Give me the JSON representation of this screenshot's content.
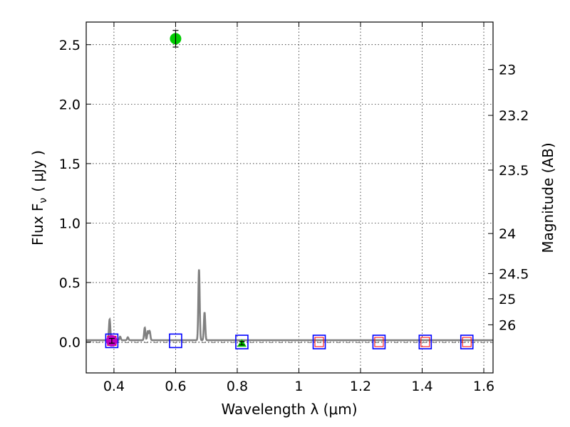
{
  "chart_data": {
    "type": "scatter",
    "title": "",
    "xlabel": "Wavelength  λ (μm)",
    "ylabel": "Flux  F",
    "ylabel_sub": "ν",
    "ylabel_unit": "( μJy )",
    "y2label": "Magnitude (AB)",
    "xlim": [
      0.31,
      1.63
    ],
    "ylim": [
      -0.26,
      2.69
    ],
    "grid": true,
    "x_ticks": [
      0.4,
      0.6,
      0.8,
      1.0,
      1.2,
      1.4,
      1.6
    ],
    "x_tick_labels": [
      "0.4",
      "0.6",
      "0.8",
      "1",
      "1.2",
      "1.4",
      "1.6"
    ],
    "y_ticks": [
      0.0,
      0.5,
      1.0,
      1.5,
      2.0,
      2.5
    ],
    "y_tick_labels": [
      "0.0",
      "0.5",
      "1.0",
      "1.5",
      "2.0",
      "2.5"
    ],
    "mag_ticks": [
      23,
      23.2,
      23.5,
      24,
      24.5,
      25,
      26
    ],
    "mag_tick_labels": [
      "23",
      "23.2",
      "23.5",
      "24",
      "24.5",
      "25",
      "26"
    ],
    "model_spectrum": {
      "name": "model SED",
      "color": "#808080",
      "baseline": 0.015,
      "lines": [
        {
          "x": 0.386,
          "peak": 0.19
        },
        {
          "x": 0.42,
          "peak": 0.045
        },
        {
          "x": 0.445,
          "peak": 0.04
        },
        {
          "x": 0.5,
          "peak": 0.12
        },
        {
          "x": 0.51,
          "peak": 0.09
        },
        {
          "x": 0.516,
          "peak": 0.09
        },
        {
          "x": 0.676,
          "peak": 0.61
        },
        {
          "x": 0.694,
          "peak": 0.25
        }
      ]
    },
    "zero_line": {
      "y": -0.005,
      "style": "dash-dot",
      "color": "#808080"
    },
    "measurements": [
      {
        "name": "green point",
        "x": 0.6,
        "y": 2.55,
        "yerr": 0.07,
        "marker": "circle",
        "color": "#00cc00"
      },
      {
        "name": "magenta point",
        "x": 0.393,
        "y": 0.01,
        "yerr": 0.02,
        "marker": "circle",
        "color": "#bf00bf"
      },
      {
        "name": "green upper limit",
        "x": 0.815,
        "y": -0.01,
        "yerr": 0.015,
        "marker": "triangle",
        "color": "#00cc00"
      }
    ],
    "model_fluxes_blue": {
      "color": "#0000ff",
      "x": [
        0.393,
        0.6,
        0.815,
        1.066,
        1.26,
        1.41,
        1.545
      ],
      "y": [
        0.01,
        0.01,
        0.0,
        0.0,
        0.0,
        0.0,
        0.0
      ]
    },
    "model_fluxes_red": {
      "color": "#ff0000",
      "x": [
        0.393,
        1.066,
        1.26,
        1.41,
        1.545
      ],
      "y": [
        0.01,
        0.0,
        0.0,
        0.0,
        0.0
      ]
    }
  }
}
